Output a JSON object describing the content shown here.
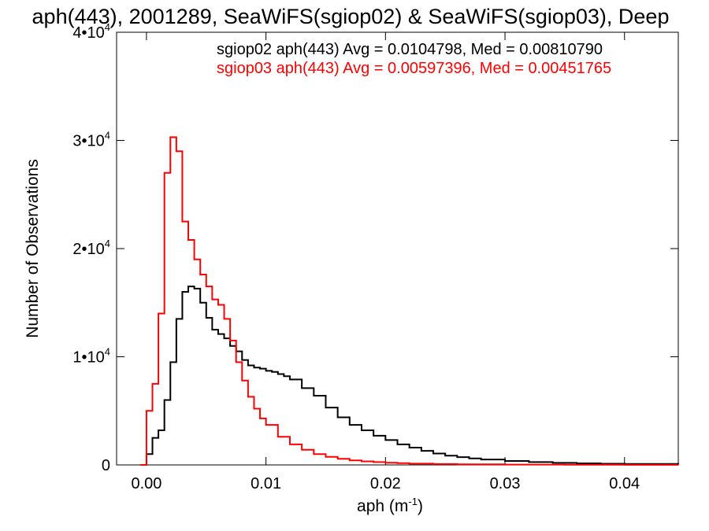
{
  "chart_data": {
    "type": "line",
    "title": "aph(443), 2001289, SeaWiFS(sgiop02) & SeaWiFS(sgiop03), Deep",
    "xlabel_main": "aph (m",
    "xlabel_sup": "-1",
    "xlabel_close": ")",
    "ylabel": "Number of Observations",
    "xlim": [
      -0.0025,
      0.0445
    ],
    "ylim": [
      0,
      40000
    ],
    "x_ticks": [
      {
        "value": 0.0,
        "label": "0.00"
      },
      {
        "value": 0.01,
        "label": "0.01"
      },
      {
        "value": 0.02,
        "label": "0.02"
      },
      {
        "value": 0.03,
        "label": "0.03"
      },
      {
        "value": 0.04,
        "label": "0.04"
      }
    ],
    "y_ticks": [
      {
        "value": 0,
        "mant": "0",
        "exp": ""
      },
      {
        "value": 10000,
        "mant": "1•10",
        "exp": "4"
      },
      {
        "value": 20000,
        "mant": "2•10",
        "exp": "4"
      },
      {
        "value": 30000,
        "mant": "3•10",
        "exp": "4"
      },
      {
        "value": 40000,
        "mant": "4•10",
        "exp": "4"
      }
    ],
    "annotations": [
      {
        "text": "sgiop02 aph(443) Avg = 0.0104798, Med = 0.00810790",
        "color": "#000000"
      },
      {
        "text": "sgiop03 aph(443) Avg = 0.00597396, Med = 0.00451765",
        "color": "#ff0000"
      }
    ],
    "series": [
      {
        "color": "#000000",
        "x": [
          -0.0005,
          0.0,
          0.0005,
          0.001,
          0.0015,
          0.002,
          0.0025,
          0.003,
          0.0035,
          0.004,
          0.0045,
          0.005,
          0.0055,
          0.006,
          0.0065,
          0.007,
          0.0075,
          0.008,
          0.0085,
          0.009,
          0.0095,
          0.01,
          0.0105,
          0.011,
          0.0115,
          0.012,
          0.013,
          0.014,
          0.015,
          0.016,
          0.017,
          0.018,
          0.019,
          0.02,
          0.021,
          0.022,
          0.023,
          0.024,
          0.025,
          0.026,
          0.027,
          0.028,
          0.03,
          0.032,
          0.034,
          0.036,
          0.038,
          0.04,
          0.0445
        ],
        "y": [
          0,
          1000,
          2500,
          3200,
          6000,
          9500,
          13500,
          16000,
          16500,
          16300,
          15000,
          13600,
          12500,
          12100,
          11700,
          11000,
          10500,
          9700,
          9200,
          9000,
          8900,
          8700,
          8600,
          8400,
          8200,
          7900,
          7100,
          6400,
          5300,
          4400,
          3700,
          3200,
          2700,
          2300,
          1900,
          1600,
          1300,
          1050,
          850,
          720,
          600,
          500,
          360,
          260,
          190,
          150,
          110,
          90,
          60
        ]
      },
      {
        "color": "#ff0000",
        "x": [
          -0.0005,
          0.0,
          0.0005,
          0.001,
          0.0015,
          0.002,
          0.0025,
          0.003,
          0.0035,
          0.004,
          0.0045,
          0.005,
          0.0055,
          0.006,
          0.0065,
          0.007,
          0.0075,
          0.008,
          0.0085,
          0.009,
          0.0095,
          0.01,
          0.011,
          0.012,
          0.013,
          0.014,
          0.015,
          0.016,
          0.017,
          0.018,
          0.019,
          0.02,
          0.021,
          0.022,
          0.024,
          0.026,
          0.03,
          0.035,
          0.04,
          0.0445
        ],
        "y": [
          0,
          5000,
          7500,
          14000,
          27000,
          30300,
          29000,
          22500,
          20800,
          19000,
          17600,
          16500,
          15300,
          14800,
          13500,
          11500,
          9500,
          7800,
          6300,
          5200,
          4300,
          3700,
          2600,
          1900,
          1400,
          1000,
          750,
          560,
          420,
          330,
          260,
          200,
          160,
          120,
          80,
          50,
          30,
          20,
          10,
          5
        ]
      }
    ]
  }
}
